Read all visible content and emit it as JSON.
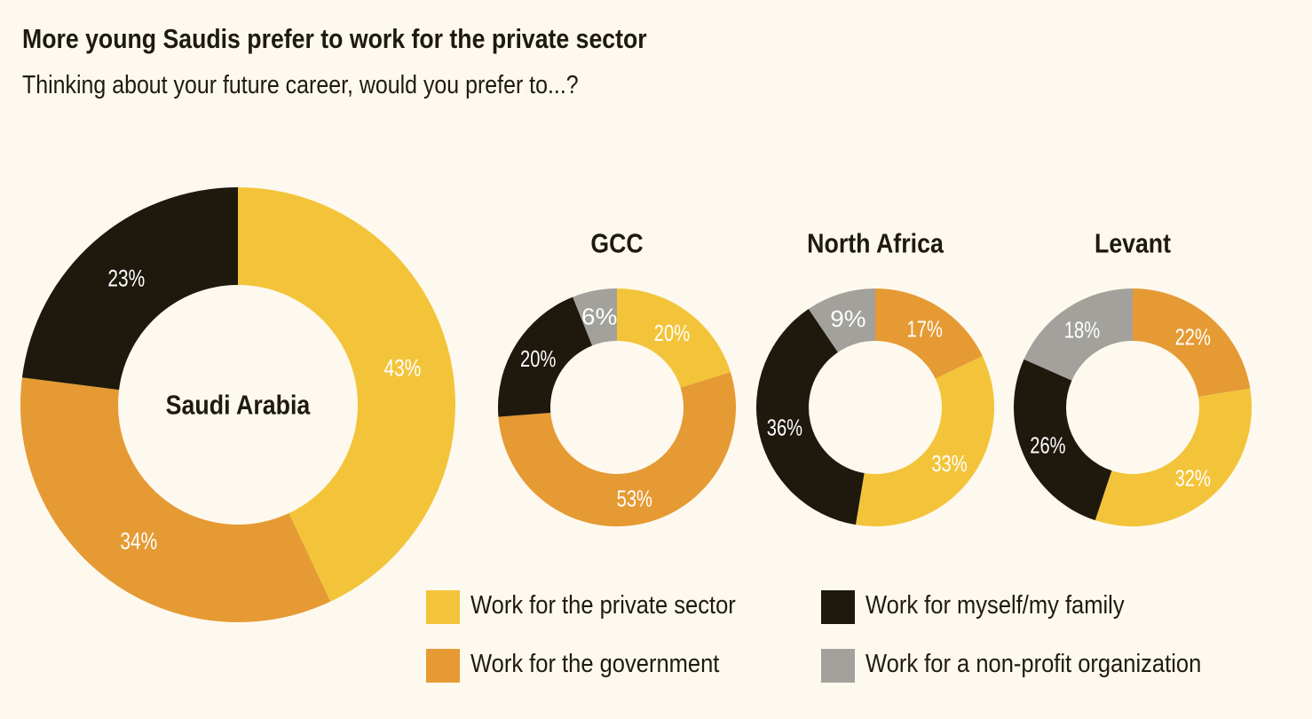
{
  "title": "More young Saudis prefer to work for the private sector",
  "subtitle": "Thinking about your future career, would you prefer to...?",
  "colors": {
    "private": "#F3C43A",
    "government": "#E59A33",
    "self": "#1E180D",
    "nonprofit": "#A3A19C",
    "background": "#FEF9EF"
  },
  "legend": [
    {
      "key": "private",
      "label": "Work for the private sector"
    },
    {
      "key": "self",
      "label": "Work for myself/my family"
    },
    {
      "key": "government",
      "label": "Work for the government"
    },
    {
      "key": "nonprofit",
      "label": "Work for a non-profit organization"
    }
  ],
  "chart_data": [
    {
      "type": "pie",
      "variant": "donut",
      "title": "Saudi Arabia",
      "slices": [
        {
          "key": "private",
          "label": "43%",
          "value": 43
        },
        {
          "key": "government",
          "label": "34%",
          "value": 34
        },
        {
          "key": "self",
          "label": "23%",
          "value": 23
        }
      ]
    },
    {
      "type": "pie",
      "variant": "donut",
      "title": "GCC",
      "slices": [
        {
          "key": "private",
          "label": "20%",
          "value": 20
        },
        {
          "key": "government",
          "label": "53%",
          "value": 53
        },
        {
          "key": "self",
          "label": "20%",
          "value": 20
        },
        {
          "key": "nonprofit",
          "label": "6%",
          "value": 6
        }
      ]
    },
    {
      "type": "pie",
      "variant": "donut",
      "title": "North Africa",
      "slices": [
        {
          "key": "government",
          "label": "17%",
          "value": 17
        },
        {
          "key": "private",
          "label": "33%",
          "value": 33
        },
        {
          "key": "self",
          "label": "36%",
          "value": 36
        },
        {
          "key": "nonprofit",
          "label": "9%",
          "value": 9
        }
      ]
    },
    {
      "type": "pie",
      "variant": "donut",
      "title": "Levant",
      "slices": [
        {
          "key": "government",
          "label": "22%",
          "value": 22
        },
        {
          "key": "private",
          "label": "32%",
          "value": 32
        },
        {
          "key": "self",
          "label": "26%",
          "value": 26
        },
        {
          "key": "nonprofit",
          "label": "18%",
          "value": 18
        }
      ]
    }
  ]
}
